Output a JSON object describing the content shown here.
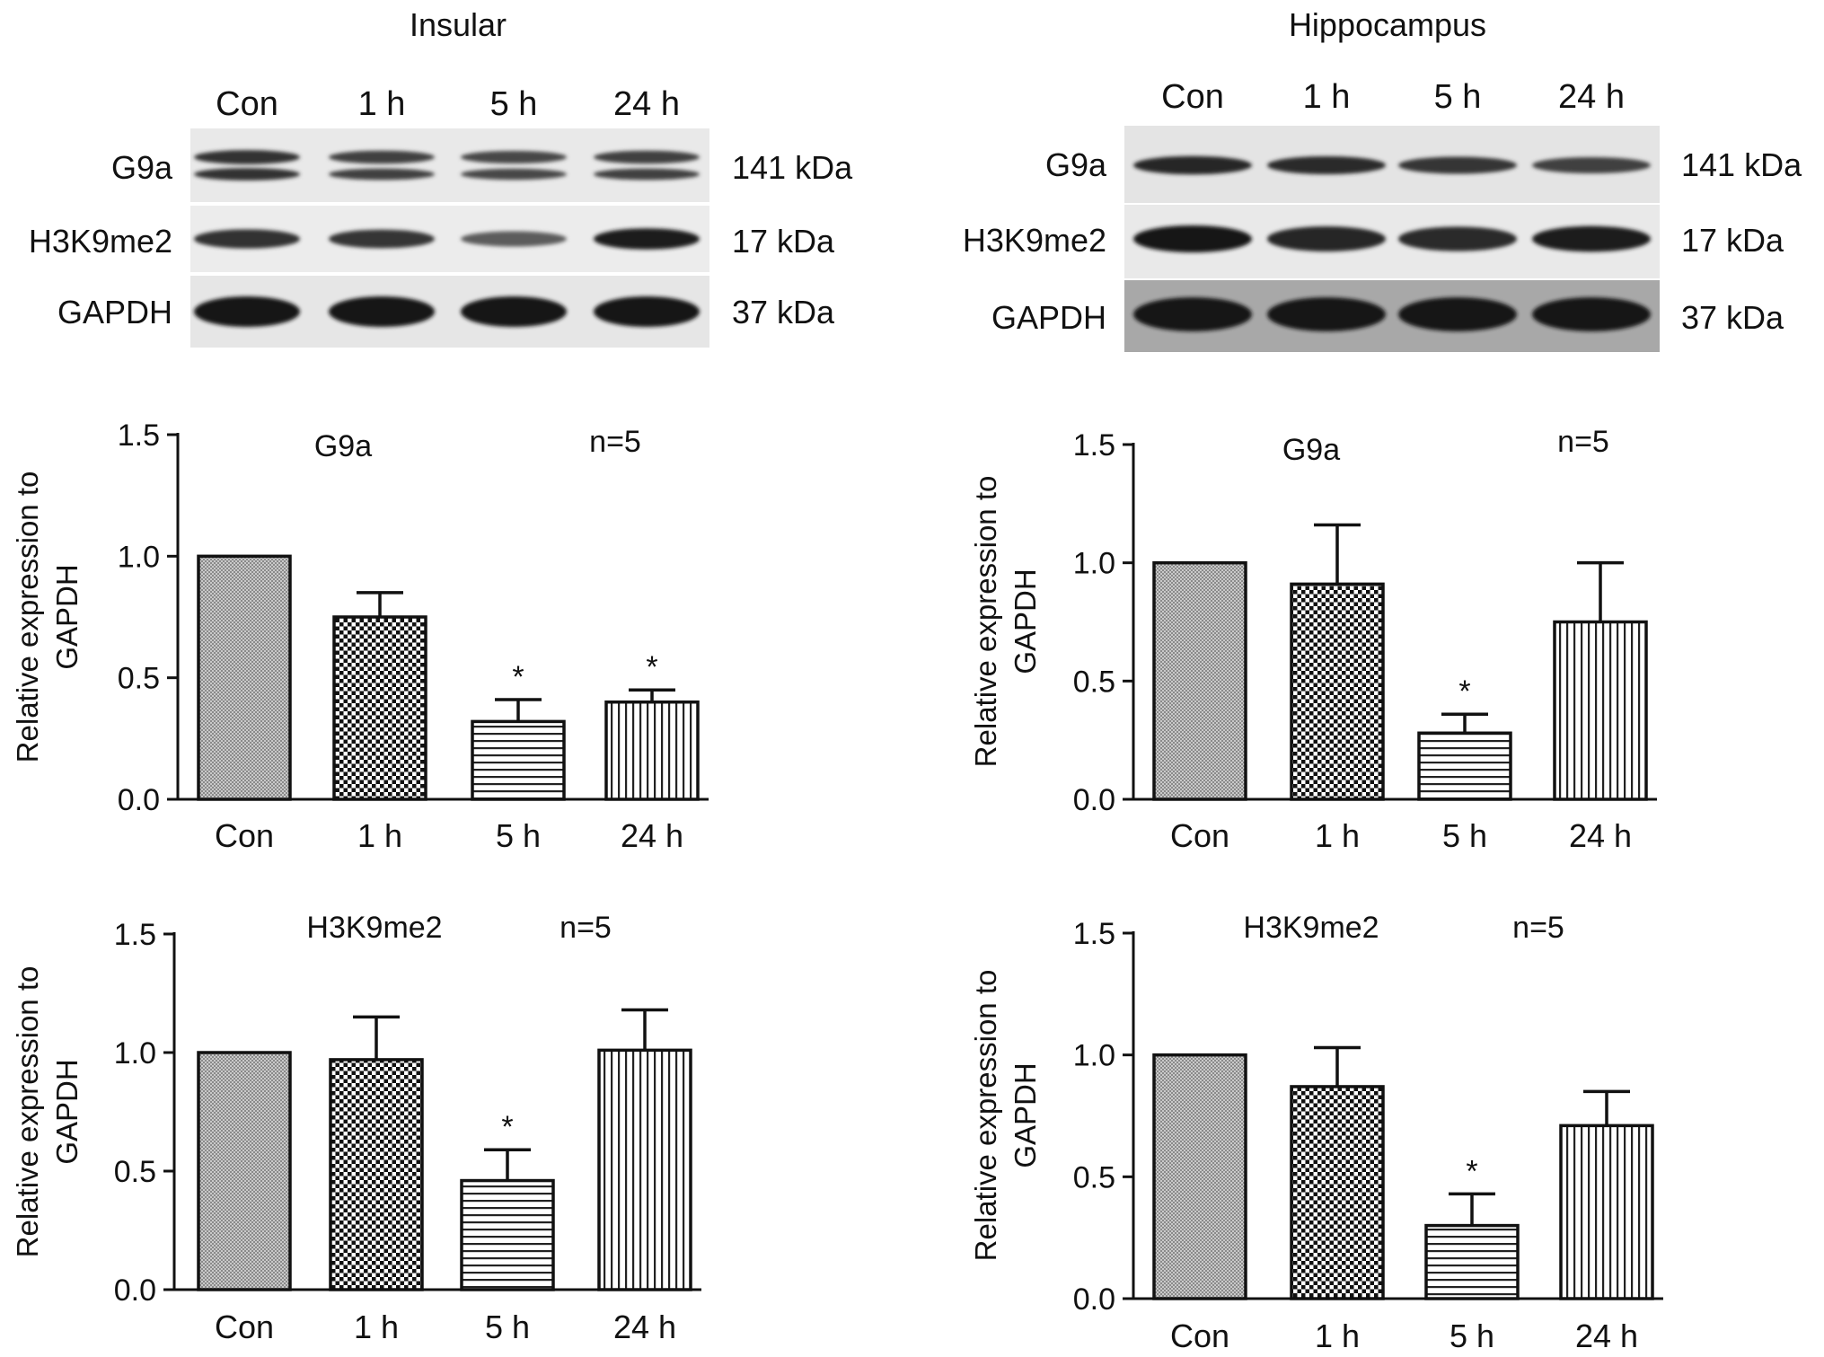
{
  "panels": [
    {
      "region": "Insular",
      "lanes": [
        "Con",
        "1 h",
        "5 h",
        "24 h"
      ],
      "blots": [
        {
          "protein": "G9a",
          "size": "141 kDa",
          "band_intensity": [
            0.75,
            0.6,
            0.55,
            0.6
          ],
          "double_band": true
        },
        {
          "protein": "H3K9me2",
          "size": "17 kDa",
          "band_intensity": [
            0.75,
            0.7,
            0.35,
            0.95
          ],
          "double_band": false
        },
        {
          "protein": "GAPDH",
          "size": "37 kDa",
          "band_intensity": [
            1,
            1,
            1,
            1
          ],
          "double_band": false
        }
      ]
    },
    {
      "region": "Hippocampus",
      "lanes": [
        "Con",
        "1 h",
        "5 h",
        "24 h"
      ],
      "blots": [
        {
          "protein": "G9a",
          "size": "141 kDa",
          "band_intensity": [
            0.85,
            0.8,
            0.7,
            0.6
          ],
          "double_band": false
        },
        {
          "protein": "H3K9me2",
          "size": "17 kDa",
          "band_intensity": [
            1,
            0.85,
            0.8,
            0.9
          ],
          "double_band": false
        },
        {
          "protein": "GAPDH",
          "size": "37 kDa",
          "band_intensity": [
            1,
            1,
            1,
            1
          ],
          "double_band": false
        }
      ]
    }
  ],
  "chart_data": [
    {
      "type": "bar",
      "id": "insular-g9a",
      "title": "G9a",
      "annotation": "n=5",
      "ylabel": "Relative expression to GAPDH",
      "categories": [
        "Con",
        "1 h",
        "5 h",
        "24 h"
      ],
      "values": [
        1.0,
        0.75,
        0.32,
        0.4
      ],
      "errors": [
        0,
        0.1,
        0.09,
        0.05
      ],
      "significance": [
        "",
        "",
        "*",
        "*"
      ],
      "ylim": [
        0,
        1.5
      ],
      "yticks": [
        "0.0",
        "0.5",
        "1.0",
        "1.5"
      ],
      "grid": false
    },
    {
      "type": "bar",
      "id": "hippocampus-g9a",
      "title": "G9a",
      "annotation": "n=5",
      "ylabel": "Relative expression to GAPDH",
      "categories": [
        "Con",
        "1 h",
        "5 h",
        "24 h"
      ],
      "values": [
        1.0,
        0.91,
        0.28,
        0.75
      ],
      "errors": [
        0,
        0.25,
        0.08,
        0.25
      ],
      "significance": [
        "",
        "",
        "*",
        ""
      ],
      "ylim": [
        0,
        1.5
      ],
      "yticks": [
        "0.0",
        "0.5",
        "1.0",
        "1.5"
      ],
      "grid": false
    },
    {
      "type": "bar",
      "id": "insular-h3k9me2",
      "title": "H3K9me2",
      "annotation": "n=5",
      "ylabel": "Relative expression to GAPDH",
      "categories": [
        "Con",
        "1 h",
        "5 h",
        "24 h"
      ],
      "values": [
        1.0,
        0.97,
        0.46,
        1.01
      ],
      "errors": [
        0,
        0.18,
        0.13,
        0.17
      ],
      "significance": [
        "",
        "",
        "*",
        ""
      ],
      "ylim": [
        0,
        1.5
      ],
      "yticks": [
        "0.0",
        "0.5",
        "1.0",
        "1.5"
      ],
      "grid": false
    },
    {
      "type": "bar",
      "id": "hippocampus-h3k9me2",
      "title": "H3K9me2",
      "annotation": "n=5",
      "ylabel": "Relative expression to GAPDH",
      "categories": [
        "Con",
        "1 h",
        "5 h",
        "24 h"
      ],
      "values": [
        1.0,
        0.87,
        0.3,
        0.71
      ],
      "errors": [
        0,
        0.16,
        0.13,
        0.14
      ],
      "significance": [
        "",
        "",
        "*",
        ""
      ],
      "ylim": [
        0,
        1.5
      ],
      "yticks": [
        "0.0",
        "0.5",
        "1.0",
        "1.5"
      ],
      "grid": false
    }
  ],
  "patterns": [
    "shade-pattern",
    "checker-pattern",
    "hlines-pattern",
    "vlines-pattern"
  ]
}
